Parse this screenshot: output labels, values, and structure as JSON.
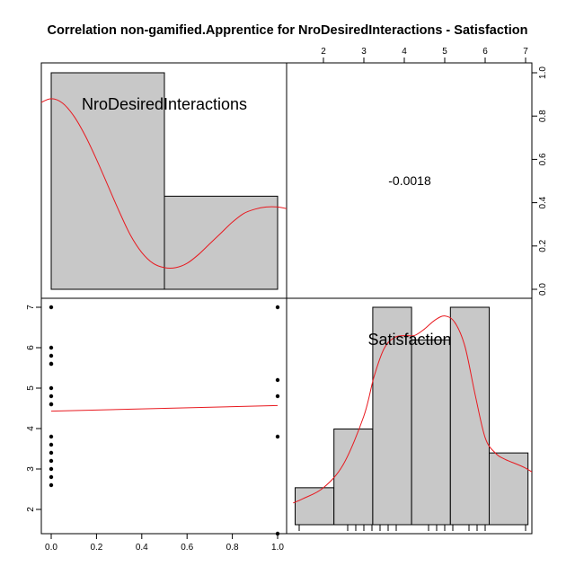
{
  "chart_data": {
    "type": "scatter",
    "title": "Correlation non-gamified.Apprentice for NroDesiredInteractions - Satisfaction",
    "variables": [
      "NroDesiredInteractions",
      "Satisfaction"
    ],
    "correlation": "-0.0018",
    "axes": {
      "bottom_ticks": [
        "0.0",
        "0.2",
        "0.4",
        "0.6",
        "0.8",
        "1.0"
      ],
      "top_ticks": [
        "2",
        "3",
        "4",
        "5",
        "6",
        "7"
      ],
      "left_ticks": [
        "2",
        "3",
        "4",
        "5",
        "6",
        "7"
      ],
      "right_ticks": [
        "0.0",
        "0.2",
        "0.4",
        "0.6",
        "0.8",
        "1.0"
      ]
    },
    "histogram_x": {
      "bins": [
        [
          0,
          0.5
        ],
        [
          0.5,
          1.0
        ]
      ],
      "heights": [
        1.0,
        0.43
      ]
    },
    "histogram_y": {
      "bins": [
        [
          1.3,
          2.26
        ],
        [
          2.26,
          3.22
        ],
        [
          3.22,
          4.18
        ],
        [
          4.18,
          5.14
        ],
        [
          5.14,
          6.1
        ],
        [
          6.1,
          7.06
        ]
      ],
      "heights": [
        0.17,
        0.44,
        1.0,
        0.85,
        1.0,
        0.33
      ]
    },
    "scatter": {
      "x": [
        0,
        0,
        0,
        0,
        0,
        0,
        0,
        0,
        0,
        0,
        0,
        0,
        0,
        0,
        0,
        0,
        1,
        1,
        1,
        1,
        1
      ],
      "y": [
        7,
        6,
        5.8,
        5.6,
        5,
        4.8,
        4.6,
        3.8,
        3.6,
        3.4,
        3.2,
        3,
        2.8,
        2.6,
        5.6,
        4.6,
        7,
        5.2,
        4.8,
        3.8,
        1.4
      ]
    },
    "fit_line": {
      "x": [
        0,
        1
      ],
      "y": [
        4.43,
        4.57
      ]
    },
    "density_x": {
      "x": [
        -0.05,
        0.0,
        0.05,
        0.1,
        0.15,
        0.2,
        0.25,
        0.3,
        0.35,
        0.4,
        0.45,
        0.5,
        0.55,
        0.6,
        0.65,
        0.7,
        0.75,
        0.8,
        0.85,
        0.9,
        0.95,
        1.0,
        1.05
      ],
      "y": [
        0.86,
        0.88,
        0.86,
        0.8,
        0.71,
        0.6,
        0.48,
        0.36,
        0.25,
        0.17,
        0.12,
        0.1,
        0.1,
        0.12,
        0.16,
        0.21,
        0.26,
        0.31,
        0.35,
        0.37,
        0.38,
        0.38,
        0.37
      ]
    },
    "density_y": {
      "x": [
        1.25,
        1.5,
        2.0,
        2.5,
        3.0,
        3.25,
        3.5,
        3.75,
        4.0,
        4.25,
        4.5,
        4.75,
        5.0,
        5.25,
        5.5,
        5.75,
        6.0,
        6.25,
        6.5,
        7.0,
        7.5
      ],
      "y": [
        0.1,
        0.12,
        0.17,
        0.28,
        0.5,
        0.68,
        0.81,
        0.86,
        0.87,
        0.87,
        0.9,
        0.94,
        0.96,
        0.93,
        0.82,
        0.6,
        0.4,
        0.33,
        0.3,
        0.26,
        0.2
      ]
    },
    "rug_y": [
      1.4,
      2.6,
      2.8,
      3.0,
      3.2,
      3.4,
      3.6,
      3.8,
      4.6,
      4.8,
      5.0,
      5.2,
      5.6,
      5.8,
      6.0,
      7.0
    ]
  }
}
